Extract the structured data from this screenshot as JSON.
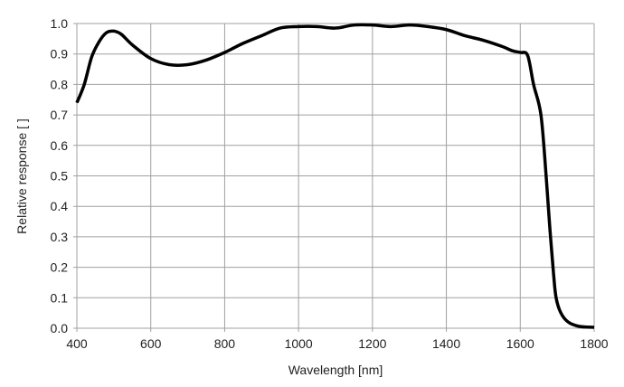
{
  "chart_data": {
    "type": "line",
    "title": "",
    "xlabel": "Wavelength [nm]",
    "ylabel": "Relative response [ ]",
    "xlim": [
      400,
      1800
    ],
    "ylim": [
      0,
      1.0
    ],
    "xticks": [
      400,
      600,
      800,
      1000,
      1200,
      1400,
      1600,
      1800
    ],
    "yticks": [
      "0.0",
      "0.1",
      "0.2",
      "0.3",
      "0.4",
      "0.5",
      "0.6",
      "0.7",
      "0.8",
      "0.9",
      "1.0"
    ],
    "grid": true,
    "line_color": "#000000",
    "grid_color": "#a0a0a0",
    "series": [
      {
        "x": [
          400,
          420,
          440,
          460,
          480,
          500,
          520,
          550,
          600,
          650,
          700,
          750,
          800,
          850,
          900,
          950,
          1000,
          1050,
          1100,
          1150,
          1200,
          1250,
          1300,
          1350,
          1400,
          1450,
          1500,
          1550,
          1580,
          1600,
          1620,
          1636,
          1656,
          1670,
          1680,
          1690,
          1697,
          1710,
          1730,
          1760,
          1800
        ],
        "y": [
          0.74,
          0.8,
          0.89,
          0.94,
          0.97,
          0.975,
          0.965,
          0.93,
          0.885,
          0.865,
          0.865,
          0.88,
          0.905,
          0.935,
          0.96,
          0.985,
          0.99,
          0.99,
          0.985,
          0.995,
          0.995,
          0.99,
          0.995,
          0.99,
          0.98,
          0.96,
          0.945,
          0.925,
          0.91,
          0.905,
          0.895,
          0.8,
          0.7,
          0.5,
          0.33,
          0.18,
          0.1,
          0.05,
          0.02,
          0.006,
          0.003
        ]
      }
    ]
  }
}
